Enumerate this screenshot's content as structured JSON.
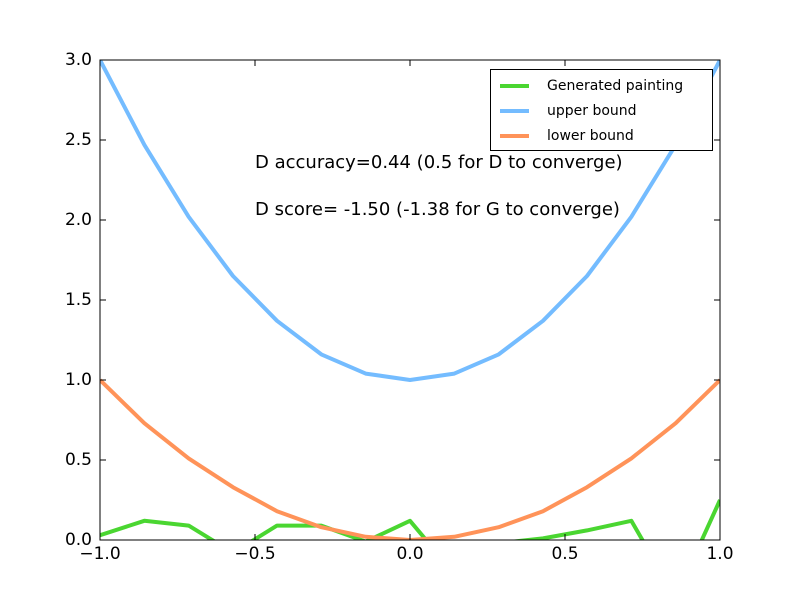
{
  "chart_data": {
    "type": "line",
    "title": "",
    "xlabel": "",
    "ylabel": "",
    "grid": false,
    "background_color": "#ffffff",
    "axes_color": "#000000",
    "xlim": [
      -1.0,
      1.0
    ],
    "ylim": [
      0.0,
      3.0
    ],
    "x": [
      -1.0,
      -0.857,
      -0.714,
      -0.571,
      -0.429,
      -0.286,
      -0.143,
      0.0,
      0.143,
      0.286,
      0.429,
      0.571,
      0.714,
      0.857,
      1.0
    ],
    "series": [
      {
        "name": "Generated painting",
        "color": "#4AD631",
        "values": [
          0.03,
          0.12,
          0.09,
          -0.08,
          0.09,
          0.09,
          -0.01,
          0.12,
          -0.21,
          -0.02,
          0.01,
          0.06,
          0.12,
          -0.36,
          0.25
        ]
      },
      {
        "name": "upper bound",
        "color": "#74BCFF",
        "values": [
          3.0,
          2.47,
          2.02,
          1.65,
          1.37,
          1.16,
          1.04,
          1.0,
          1.04,
          1.16,
          1.37,
          1.65,
          2.02,
          2.47,
          3.0
        ]
      },
      {
        "name": "lower bound",
        "color": "#FF9359",
        "values": [
          1.0,
          0.73,
          0.51,
          0.33,
          0.18,
          0.08,
          0.02,
          0.0,
          0.02,
          0.08,
          0.18,
          0.33,
          0.51,
          0.73,
          1.0
        ]
      }
    ],
    "xticks": {
      "values": [
        -1.0,
        -0.5,
        0.0,
        0.5,
        1.0
      ],
      "labels": [
        "−1.0",
        "−0.5",
        "0.0",
        "0.5",
        "1.0"
      ]
    },
    "yticks": {
      "values": [
        0.0,
        0.5,
        1.0,
        1.5,
        2.0,
        2.5,
        3.0
      ],
      "labels": [
        "0.0",
        "0.5",
        "1.0",
        "1.5",
        "2.0",
        "2.5",
        "3.0"
      ]
    },
    "annotations": [
      {
        "text": "D accuracy=0.44 (0.5 for D to converge)",
        "x": -0.5,
        "y": 2.3
      },
      {
        "text": "D score= -1.50 (-1.38 for G to converge)",
        "x": -0.5,
        "y": 2.0
      }
    ],
    "legend": {
      "position": "upper right"
    }
  }
}
